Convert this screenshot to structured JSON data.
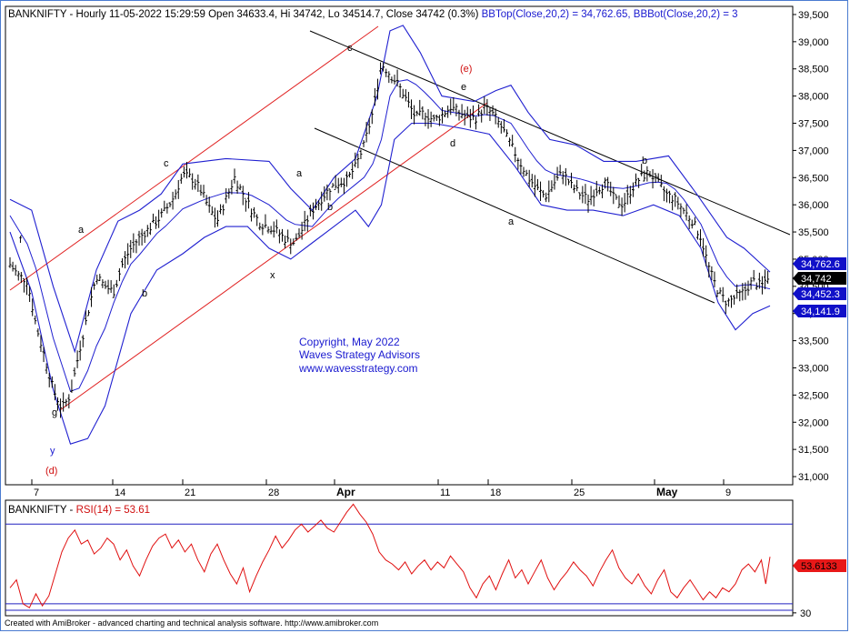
{
  "price_chart": {
    "title_parts": {
      "prefix": "BANKNIFTY - Hourly 11-05-2022 15:29:59 Open 34633.4, Hi 34742, Lo 34514.7, Close 34742 (0.3%) ",
      "bbtop": "BBTop(Close,20,2) = 34,762.65, ",
      "bbbot": "BBBot(Close,20,2) = 3"
    },
    "copyright": [
      "Copyright, May 2022",
      "Waves Strategy Advisors",
      "www.wavesstrategy.com"
    ],
    "wave_labels": [
      {
        "text": "f",
        "color": "#000000"
      },
      {
        "text": "g",
        "color": "#000000"
      },
      {
        "text": "y",
        "color": "#1a1ad0"
      },
      {
        "text": "(d)",
        "color": "#d01010"
      },
      {
        "text": "a",
        "color": "#000000"
      },
      {
        "text": "b",
        "color": "#000000"
      },
      {
        "text": "c",
        "color": "#000000"
      },
      {
        "text": "x",
        "color": "#000000"
      },
      {
        "text": "a",
        "color": "#000000"
      },
      {
        "text": "b",
        "color": "#000000"
      },
      {
        "text": "c",
        "color": "#000000"
      },
      {
        "text": "(e)",
        "color": "#d01010"
      },
      {
        "text": "e",
        "color": "#000000"
      },
      {
        "text": "d",
        "color": "#000000"
      },
      {
        "text": "a",
        "color": "#000000"
      },
      {
        "text": "b",
        "color": "#000000"
      }
    ],
    "price_tags": [
      {
        "text": "34,762.6",
        "bg": "#1010c8"
      },
      {
        "text": "34,742",
        "bg": "#000000"
      },
      {
        "text": "34,452.3",
        "bg": "#1010c8"
      },
      {
        "text": "34,141.9",
        "bg": "#1010c8"
      }
    ]
  },
  "rsi_chart": {
    "title_prefix": "BANKNIFTY - ",
    "title_rsi": "RSI(14) = 53.61",
    "value_tag": "53.6133",
    "tick_labels": [
      "30"
    ]
  },
  "footer_text": "Created with AmiBroker - advanced charting and technical analysis software. http://www.amibroker.com",
  "colors": {
    "bollinger": "#2020d0",
    "channel_red": "#e02020",
    "channel_black": "#000000",
    "rsi_line": "#e01010",
    "rsi_levels": "#2020c0",
    "copyright_text": "#1a1ad0"
  },
  "chart_data": [
    {
      "type": "ohlc-bar",
      "title": "BANKNIFTY - Hourly 11-05-2022 15:29:59 Open 34633.4, Hi 34742, Lo 34514.7, Close 34742 (0.3%)",
      "x_tick_labels": [
        "7",
        "14",
        "21",
        "28",
        "Apr",
        "11",
        "18",
        "25",
        "May",
        "9"
      ],
      "y_tick_labels": [
        "31,000",
        "31,500",
        "32,000",
        "32,500",
        "33,000",
        "33,500",
        "34,000",
        "34,500",
        "35,000",
        "35,500",
        "36,000",
        "36,500",
        "37,000",
        "37,500",
        "38,000",
        "38,500",
        "39,000",
        "39,500"
      ],
      "ylim": [
        30850,
        39650
      ],
      "last": {
        "open": 34633.4,
        "high": 34742,
        "low": 34514.7,
        "close": 34742
      },
      "bb_top_last": 34762.65,
      "bb_mid_last": 34452.3,
      "bb_bot_last": 34141.9,
      "close_path": [
        [
          0,
          34900
        ],
        [
          4,
          34700
        ],
        [
          8,
          34600
        ],
        [
          12,
          33800
        ],
        [
          16,
          33200
        ],
        [
          20,
          32600
        ],
        [
          24,
          32250
        ],
        [
          28,
          32500
        ],
        [
          32,
          33300
        ],
        [
          36,
          34000
        ],
        [
          40,
          34700
        ],
        [
          44,
          34500
        ],
        [
          48,
          34400
        ],
        [
          52,
          34900
        ],
        [
          56,
          35200
        ],
        [
          60,
          35400
        ],
        [
          64,
          35550
        ],
        [
          68,
          35700
        ],
        [
          72,
          35900
        ],
        [
          76,
          36150
        ],
        [
          80,
          36550
        ],
        [
          84,
          36500
        ],
        [
          88,
          36300
        ],
        [
          92,
          35950
        ],
        [
          96,
          35700
        ],
        [
          100,
          36100
        ],
        [
          104,
          36500
        ],
        [
          108,
          36200
        ],
        [
          112,
          35900
        ],
        [
          116,
          35650
        ],
        [
          120,
          35600
        ],
        [
          124,
          35500
        ],
        [
          128,
          35350
        ],
        [
          132,
          35300
        ],
        [
          136,
          35600
        ],
        [
          140,
          35900
        ],
        [
          144,
          36100
        ],
        [
          148,
          36300
        ],
        [
          152,
          36400
        ],
        [
          156,
          36450
        ],
        [
          160,
          36700
        ],
        [
          164,
          37100
        ],
        [
          168,
          37700
        ],
        [
          172,
          38600
        ],
        [
          176,
          38400
        ],
        [
          180,
          38200
        ],
        [
          184,
          37900
        ],
        [
          188,
          37600
        ],
        [
          192,
          37700
        ],
        [
          196,
          37550
        ],
        [
          200,
          37650
        ],
        [
          204,
          37800
        ],
        [
          208,
          37700
        ],
        [
          212,
          37600
        ],
        [
          216,
          37600
        ],
        [
          220,
          37800
        ],
        [
          224,
          37650
        ],
        [
          228,
          37400
        ],
        [
          232,
          37100
        ],
        [
          236,
          36800
        ],
        [
          240,
          36500
        ],
        [
          244,
          36300
        ],
        [
          248,
          36150
        ],
        [
          252,
          36400
        ],
        [
          256,
          36600
        ],
        [
          260,
          36350
        ],
        [
          264,
          36200
        ],
        [
          268,
          36100
        ],
        [
          272,
          36300
        ],
        [
          276,
          36400
        ],
        [
          280,
          36100
        ],
        [
          284,
          36000
        ],
        [
          288,
          36300
        ],
        [
          292,
          36500
        ],
        [
          296,
          36600
        ],
        [
          300,
          36400
        ],
        [
          304,
          36200
        ],
        [
          308,
          36100
        ],
        [
          312,
          35900
        ],
        [
          316,
          35700
        ],
        [
          320,
          35400
        ],
        [
          324,
          34800
        ],
        [
          328,
          34400
        ],
        [
          332,
          34200
        ],
        [
          336,
          34300
        ],
        [
          340,
          34400
        ],
        [
          344,
          34600
        ],
        [
          348,
          34500
        ],
        [
          352,
          34742
        ]
      ],
      "bb_top_path": [
        [
          0,
          36100
        ],
        [
          10,
          35900
        ],
        [
          20,
          34500
        ],
        [
          30,
          33300
        ],
        [
          40,
          34800
        ],
        [
          50,
          35700
        ],
        [
          60,
          35900
        ],
        [
          70,
          36200
        ],
        [
          80,
          36750
        ],
        [
          100,
          36850
        ],
        [
          120,
          36800
        ],
        [
          130,
          36300
        ],
        [
          140,
          35900
        ],
        [
          150,
          36500
        ],
        [
          160,
          36850
        ],
        [
          170,
          38000
        ],
        [
          176,
          39200
        ],
        [
          182,
          39300
        ],
        [
          190,
          38800
        ],
        [
          200,
          38000
        ],
        [
          215,
          37900
        ],
        [
          225,
          38100
        ],
        [
          232,
          38200
        ],
        [
          240,
          37700
        ],
        [
          250,
          37200
        ],
        [
          262,
          37100
        ],
        [
          275,
          36800
        ],
        [
          290,
          36800
        ],
        [
          305,
          36900
        ],
        [
          318,
          36200
        ],
        [
          325,
          35800
        ],
        [
          332,
          35400
        ],
        [
          340,
          35200
        ],
        [
          352,
          34762.65
        ]
      ],
      "bb_bot_path": [
        [
          0,
          35500
        ],
        [
          10,
          34400
        ],
        [
          20,
          32600
        ],
        [
          28,
          31600
        ],
        [
          36,
          31700
        ],
        [
          44,
          32300
        ],
        [
          56,
          34000
        ],
        [
          68,
          34800
        ],
        [
          80,
          35100
        ],
        [
          90,
          35400
        ],
        [
          100,
          35600
        ],
        [
          110,
          35600
        ],
        [
          120,
          35200
        ],
        [
          130,
          35000
        ],
        [
          140,
          35300
        ],
        [
          150,
          35600
        ],
        [
          160,
          35900
        ],
        [
          166,
          35600
        ],
        [
          172,
          36000
        ],
        [
          178,
          37200
        ],
        [
          186,
          37500
        ],
        [
          196,
          37500
        ],
        [
          210,
          37400
        ],
        [
          222,
          37300
        ],
        [
          234,
          36700
        ],
        [
          246,
          36000
        ],
        [
          258,
          35900
        ],
        [
          270,
          35900
        ],
        [
          284,
          35800
        ],
        [
          298,
          36000
        ],
        [
          310,
          35800
        ],
        [
          320,
          35200
        ],
        [
          328,
          34200
        ],
        [
          336,
          33700
        ],
        [
          344,
          34000
        ],
        [
          352,
          34141.9
        ]
      ]
    },
    {
      "type": "line",
      "title": "BANKNIFTY - RSI(14) = 53.61",
      "series": [
        {
          "name": "RSI(14)",
          "last": 53.61
        }
      ],
      "levels": [
        30,
        70
      ],
      "ylim": [
        24,
        82
      ],
      "y_tick_labels": [
        "30"
      ],
      "values": [
        [
          0,
          38
        ],
        [
          3,
          42
        ],
        [
          6,
          30
        ],
        [
          9,
          28
        ],
        [
          12,
          35
        ],
        [
          15,
          29
        ],
        [
          18,
          34
        ],
        [
          21,
          45
        ],
        [
          24,
          56
        ],
        [
          27,
          63
        ],
        [
          30,
          67
        ],
        [
          33,
          60
        ],
        [
          36,
          62
        ],
        [
          39,
          55
        ],
        [
          42,
          58
        ],
        [
          45,
          63
        ],
        [
          48,
          60
        ],
        [
          51,
          52
        ],
        [
          54,
          57
        ],
        [
          57,
          49
        ],
        [
          60,
          44
        ],
        [
          63,
          52
        ],
        [
          66,
          59
        ],
        [
          69,
          63
        ],
        [
          72,
          65
        ],
        [
          75,
          58
        ],
        [
          78,
          62
        ],
        [
          81,
          56
        ],
        [
          84,
          60
        ],
        [
          87,
          52
        ],
        [
          90,
          46
        ],
        [
          93,
          55
        ],
        [
          96,
          60
        ],
        [
          99,
          52
        ],
        [
          102,
          45
        ],
        [
          105,
          40
        ],
        [
          108,
          48
        ],
        [
          111,
          36
        ],
        [
          114,
          44
        ],
        [
          117,
          51
        ],
        [
          120,
          57
        ],
        [
          123,
          64
        ],
        [
          126,
          58
        ],
        [
          129,
          62
        ],
        [
          132,
          67
        ],
        [
          135,
          70
        ],
        [
          138,
          66
        ],
        [
          141,
          69
        ],
        [
          144,
          72
        ],
        [
          147,
          68
        ],
        [
          150,
          66
        ],
        [
          153,
          71
        ],
        [
          156,
          76
        ],
        [
          159,
          80
        ],
        [
          162,
          75
        ],
        [
          165,
          71
        ],
        [
          168,
          65
        ],
        [
          171,
          56
        ],
        [
          174,
          52
        ],
        [
          177,
          50
        ],
        [
          180,
          47
        ],
        [
          183,
          51
        ],
        [
          186,
          45
        ],
        [
          189,
          49
        ],
        [
          192,
          52
        ],
        [
          195,
          47
        ],
        [
          198,
          51
        ],
        [
          201,
          48
        ],
        [
          204,
          54
        ],
        [
          207,
          50
        ],
        [
          210,
          46
        ],
        [
          213,
          38
        ],
        [
          216,
          33
        ],
        [
          219,
          40
        ],
        [
          222,
          44
        ],
        [
          225,
          37
        ],
        [
          228,
          45
        ],
        [
          231,
          52
        ],
        [
          234,
          43
        ],
        [
          237,
          47
        ],
        [
          240,
          40
        ],
        [
          243,
          46
        ],
        [
          246,
          52
        ],
        [
          249,
          43
        ],
        [
          252,
          37
        ],
        [
          255,
          42
        ],
        [
          258,
          46
        ],
        [
          261,
          51
        ],
        [
          264,
          47
        ],
        [
          267,
          44
        ],
        [
          270,
          39
        ],
        [
          273,
          46
        ],
        [
          276,
          52
        ],
        [
          279,
          57
        ],
        [
          282,
          48
        ],
        [
          285,
          43
        ],
        [
          288,
          40
        ],
        [
          291,
          45
        ],
        [
          294,
          39
        ],
        [
          297,
          35
        ],
        [
          300,
          42
        ],
        [
          303,
          47
        ],
        [
          306,
          36
        ],
        [
          309,
          33
        ],
        [
          312,
          38
        ],
        [
          315,
          42
        ],
        [
          318,
          37
        ],
        [
          321,
          32
        ],
        [
          324,
          36
        ],
        [
          327,
          33
        ],
        [
          330,
          38
        ],
        [
          333,
          36
        ],
        [
          336,
          40
        ],
        [
          339,
          47
        ],
        [
          342,
          50
        ],
        [
          345,
          46
        ],
        [
          348,
          52
        ],
        [
          350,
          40
        ],
        [
          352,
          53.61
        ]
      ]
    }
  ]
}
